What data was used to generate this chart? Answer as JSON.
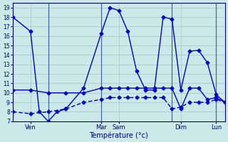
{
  "background_color": "#cce8e8",
  "grid_color": "#a8cccc",
  "line_color": "#0000cc",
  "marker_color": "#0000cc",
  "marker_style": "D",
  "marker_size": 2.5,
  "line_width": 1.0,
  "xlabel": "Température (°c)",
  "ylim": [
    7,
    19.5
  ],
  "xlim": [
    0,
    48
  ],
  "yticks": [
    7,
    8,
    9,
    10,
    11,
    12,
    13,
    14,
    15,
    16,
    17,
    18,
    19
  ],
  "vline_positions": [
    8,
    20,
    36,
    46
  ],
  "x_tick_positions": [
    4,
    20,
    24,
    38,
    46
  ],
  "x_tick_labels": [
    "Ven",
    "Mar",
    "Sam",
    "Dim",
    "Lun"
  ],
  "series2_x": [
    0,
    4,
    8,
    12,
    16,
    20,
    22,
    24,
    26,
    28,
    30,
    32,
    34,
    36,
    38,
    40,
    42,
    44,
    46,
    48
  ],
  "series2_y": [
    10.3,
    10.3,
    10.0,
    10.0,
    10.0,
    10.5,
    10.5,
    10.5,
    10.5,
    10.5,
    10.5,
    10.5,
    10.5,
    10.5,
    8.3,
    10.5,
    10.5,
    9.3,
    9.5,
    9.0
  ],
  "series3_x": [
    0,
    4,
    8,
    12,
    16,
    20,
    22,
    24,
    26,
    28,
    30,
    32,
    34,
    36,
    38,
    40,
    42,
    44,
    46,
    48
  ],
  "series3_y": [
    8.0,
    7.8,
    8.0,
    8.3,
    9.0,
    9.3,
    9.5,
    9.5,
    9.5,
    9.5,
    9.5,
    9.5,
    9.5,
    8.3,
    8.5,
    9.0,
    9.0,
    9.0,
    9.3,
    9.0
  ],
  "series4_x": [
    0,
    4,
    6,
    8,
    10,
    12,
    16,
    20,
    22,
    24,
    26,
    28,
    30,
    32,
    34,
    36,
    38,
    40,
    42,
    44,
    46,
    48
  ],
  "series4_y": [
    18,
    16.5,
    8.0,
    7.0,
    8.0,
    8.3,
    10.5,
    16.3,
    19.0,
    18.7,
    16.5,
    12.3,
    10.3,
    10.3,
    18.0,
    17.8,
    10.3,
    14.4,
    14.5,
    13.2,
    9.8,
    9.0
  ]
}
